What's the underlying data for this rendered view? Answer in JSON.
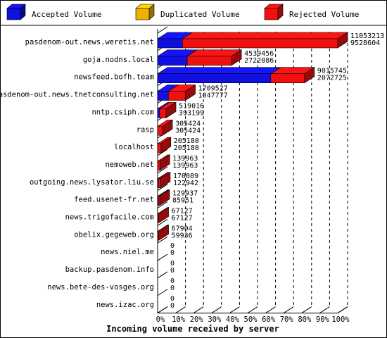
{
  "chart_data": {
    "type": "bar",
    "xlabel": "Incoming volume received by server",
    "xlim": [
      0,
      100
    ],
    "x_ticks": [
      "0%",
      "10%",
      "20%",
      "30%",
      "40%",
      "50%",
      "60%",
      "70%",
      "80%",
      "90%",
      "100%"
    ],
    "series": [
      {
        "name": "Accepted Volume",
        "color": "#1010e0"
      },
      {
        "name": "Duplicated Volume",
        "color": "#f0b000"
      },
      {
        "name": "Rejected Volume",
        "color": "#f01010"
      }
    ],
    "rows": [
      {
        "server": "pasdenom-out.news.weretis.net",
        "volume": 11053213,
        "rejected": 9528604,
        "label_volume": "11053213",
        "label_rejected": "9528604"
      },
      {
        "server": "goja.nodns.local",
        "volume": 4539456,
        "rejected": 2722086,
        "label_volume": "4539456",
        "label_rejected": "2722086"
      },
      {
        "server": "newsfeed.bofh.team",
        "volume": 9015745,
        "rejected": 2072725,
        "label_volume": "9015745",
        "label_rejected": "2072725"
      },
      {
        "server": "pasdenom-out.news.tnetconsulting.net",
        "volume": 1709527,
        "rejected": 1047777,
        "label_volume": "1709527",
        "label_rejected": "1047777"
      },
      {
        "server": "nntp.csiph.com",
        "volume": 519016,
        "rejected": 393199,
        "label_volume": "519016",
        "label_rejected": "393199"
      },
      {
        "server": "rasp",
        "volume": 305424,
        "rejected": 305424,
        "label_volume": "305424",
        "label_rejected": "305424"
      },
      {
        "server": "localhost",
        "volume": 205180,
        "rejected": 205180,
        "label_volume": "205180",
        "label_rejected": "205180"
      },
      {
        "server": "nemoweb.net",
        "volume": 139963,
        "rejected": 139963,
        "label_volume": "139963",
        "label_rejected": "139963"
      },
      {
        "server": "outgoing.news.lysator.liu.se",
        "volume": 170089,
        "rejected": 122942,
        "label_volume": "170089",
        "label_rejected": "122942"
      },
      {
        "server": "feed.usenet-fr.net",
        "volume": 129937,
        "rejected": 85951,
        "label_volume": "129937",
        "label_rejected": "85951"
      },
      {
        "server": "news.trigofacile.com",
        "volume": 67127,
        "rejected": 67127,
        "label_volume": "67127",
        "label_rejected": "67127"
      },
      {
        "server": "obelix.gegeweb.org",
        "volume": 67904,
        "rejected": 59936,
        "label_volume": "67904",
        "label_rejected": "59936"
      },
      {
        "server": "news.niel.me",
        "volume": 0,
        "rejected": 0,
        "label_volume": "0",
        "label_rejected": "0"
      },
      {
        "server": "backup.pasdenom.info",
        "volume": 0,
        "rejected": 0,
        "label_volume": "0",
        "label_rejected": "0"
      },
      {
        "server": "news.bete-des-vosges.org",
        "volume": 0,
        "rejected": 0,
        "label_volume": "0",
        "label_rejected": "0"
      },
      {
        "server": "news.izac.org",
        "volume": 0,
        "rejected": 0,
        "label_volume": "0",
        "label_rejected": "0"
      }
    ],
    "grid": true,
    "legend_placement": "top"
  }
}
